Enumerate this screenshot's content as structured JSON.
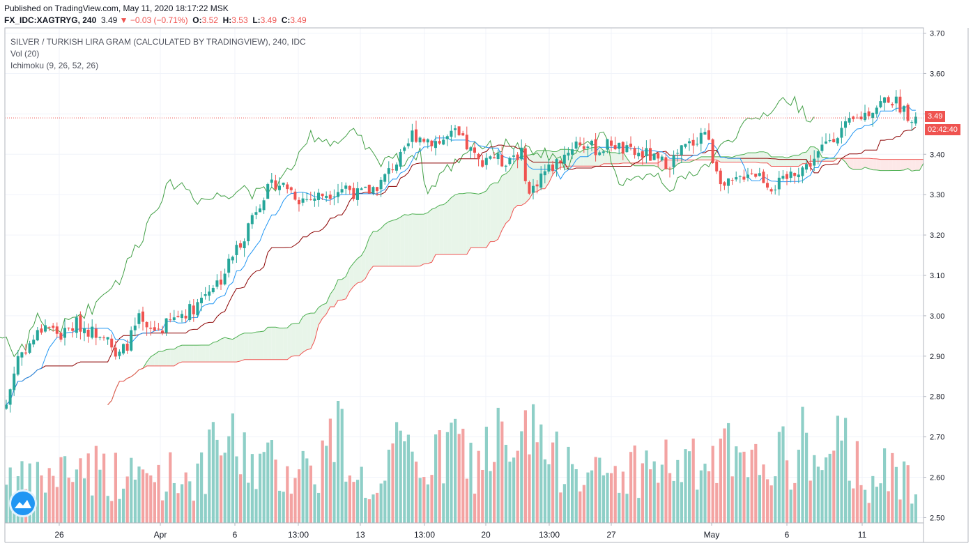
{
  "header": {
    "published": "Published on TradingView.com, May 11, 2020 18:17:22 MSK",
    "symbol": "FX_IDC:XAGTRYG, 240",
    "last": "3.49",
    "change": "▼ −0.03 (−0.71%)",
    "o_label": "O:",
    "o_value": "3.52",
    "h_label": "H:",
    "h_value": "3.53",
    "l_label": "L:",
    "l_value": "3.49",
    "c_label": "C:",
    "c_value": "3.49"
  },
  "legend": {
    "title": "SILVER / TURKISH LIRA GRAM (CALCULATED BY TRADINGVIEW), 240, IDC",
    "volume": "Vol (20)",
    "ichimoku": "Ichimoku (9, 26, 52, 26)"
  },
  "badges": {
    "price": "3.49",
    "countdown": "02:42:40"
  },
  "colors": {
    "up": "#26a69a",
    "down": "#ef5350",
    "vol_up": "#8ecfc7",
    "vol_down": "#f3a3a2",
    "conversion": "#2196f3",
    "base": "#8b0000",
    "lagging": "#43a047",
    "span_a": "#4caf50",
    "span_b": "#ef5350",
    "cloud_bull": "#e8f5e9",
    "cloud_bear": "#fde8e8"
  },
  "chart_data": {
    "type": "candlestick",
    "y_ticks": [
      "3.70",
      "3.60",
      "3.50",
      "3.40",
      "3.30",
      "3.20",
      "3.10",
      "3.00",
      "2.90",
      "2.80",
      "2.70",
      "2.60",
      "2.50"
    ],
    "ylim": [
      2.487,
      3.713
    ],
    "x_ticks": [
      "26",
      "Apr",
      "6",
      "13:00",
      "13",
      "13:00",
      "20",
      "13:00",
      "27",
      "May",
      "6",
      "11"
    ],
    "last_price": 3.49,
    "close_waypoints": [
      [
        0,
        2.78
      ],
      [
        3,
        2.9
      ],
      [
        6,
        2.93
      ],
      [
        10,
        2.98
      ],
      [
        14,
        2.95
      ],
      [
        18,
        2.98
      ],
      [
        22,
        2.96
      ],
      [
        26,
        2.96
      ],
      [
        28,
        2.89
      ],
      [
        31,
        2.93
      ],
      [
        34,
        2.99
      ],
      [
        36,
        2.96
      ],
      [
        40,
        2.97
      ],
      [
        44,
        3.0
      ],
      [
        48,
        3.02
      ],
      [
        52,
        3.07
      ],
      [
        55,
        3.09
      ],
      [
        58,
        3.15
      ],
      [
        61,
        3.2
      ],
      [
        63,
        3.25
      ],
      [
        66,
        3.3
      ],
      [
        69,
        3.33
      ],
      [
        72,
        3.32
      ],
      [
        75,
        3.29
      ],
      [
        78,
        3.29
      ],
      [
        81,
        3.3
      ],
      [
        84,
        3.31
      ],
      [
        87,
        3.32
      ],
      [
        90,
        3.3
      ],
      [
        93,
        3.31
      ],
      [
        96,
        3.33
      ],
      [
        99,
        3.37
      ],
      [
        102,
        3.4
      ],
      [
        104,
        3.45
      ],
      [
        107,
        3.44
      ],
      [
        111,
        3.43
      ],
      [
        115,
        3.45
      ],
      [
        118,
        3.42
      ],
      [
        121,
        3.38
      ],
      [
        124,
        3.4
      ],
      [
        127,
        3.38
      ],
      [
        130,
        3.4
      ],
      [
        132,
        3.4
      ],
      [
        134,
        3.3
      ],
      [
        137,
        3.35
      ],
      [
        140,
        3.37
      ],
      [
        143,
        3.4
      ],
      [
        146,
        3.43
      ],
      [
        149,
        3.42
      ],
      [
        152,
        3.41
      ],
      [
        155,
        3.43
      ],
      [
        158,
        3.41
      ],
      [
        161,
        3.4
      ],
      [
        164,
        3.4
      ],
      [
        167,
        3.38
      ],
      [
        170,
        3.38
      ],
      [
        173,
        3.41
      ],
      [
        176,
        3.43
      ],
      [
        179,
        3.46
      ],
      [
        181,
        3.39
      ],
      [
        184,
        3.32
      ],
      [
        187,
        3.33
      ],
      [
        190,
        3.36
      ],
      [
        193,
        3.35
      ],
      [
        196,
        3.32
      ],
      [
        199,
        3.33
      ],
      [
        202,
        3.36
      ],
      [
        205,
        3.37
      ],
      [
        208,
        3.4
      ],
      [
        211,
        3.44
      ],
      [
        214,
        3.46
      ],
      [
        217,
        3.48
      ],
      [
        220,
        3.5
      ],
      [
        223,
        3.52
      ],
      [
        226,
        3.54
      ],
      [
        229,
        3.52
      ],
      [
        231,
        3.5
      ],
      [
        233,
        3.49
      ]
    ],
    "volume_waypoints": [
      [
        0,
        0.55
      ],
      [
        5,
        0.38
      ],
      [
        10,
        0.45
      ],
      [
        20,
        0.62
      ],
      [
        30,
        0.45
      ],
      [
        40,
        0.5
      ],
      [
        50,
        0.48
      ],
      [
        55,
        0.85
      ],
      [
        60,
        0.7
      ],
      [
        70,
        0.55
      ],
      [
        80,
        0.6
      ],
      [
        85,
        0.97
      ],
      [
        90,
        0.5
      ],
      [
        95,
        0.25
      ],
      [
        100,
        0.7
      ],
      [
        110,
        0.6
      ],
      [
        115,
        0.85
      ],
      [
        120,
        0.55
      ],
      [
        125,
        0.9
      ],
      [
        130,
        0.55
      ],
      [
        135,
        1.0
      ],
      [
        140,
        0.55
      ],
      [
        145,
        0.85
      ],
      [
        150,
        0.45
      ],
      [
        160,
        0.55
      ],
      [
        170,
        0.6
      ],
      [
        180,
        0.55
      ],
      [
        185,
        0.7
      ],
      [
        190,
        0.45
      ],
      [
        195,
        0.8
      ],
      [
        200,
        0.6
      ],
      [
        205,
        0.85
      ],
      [
        210,
        0.5
      ],
      [
        215,
        0.85
      ],
      [
        220,
        0.45
      ],
      [
        225,
        0.5
      ],
      [
        230,
        0.45
      ],
      [
        233,
        0.45
      ]
    ]
  }
}
